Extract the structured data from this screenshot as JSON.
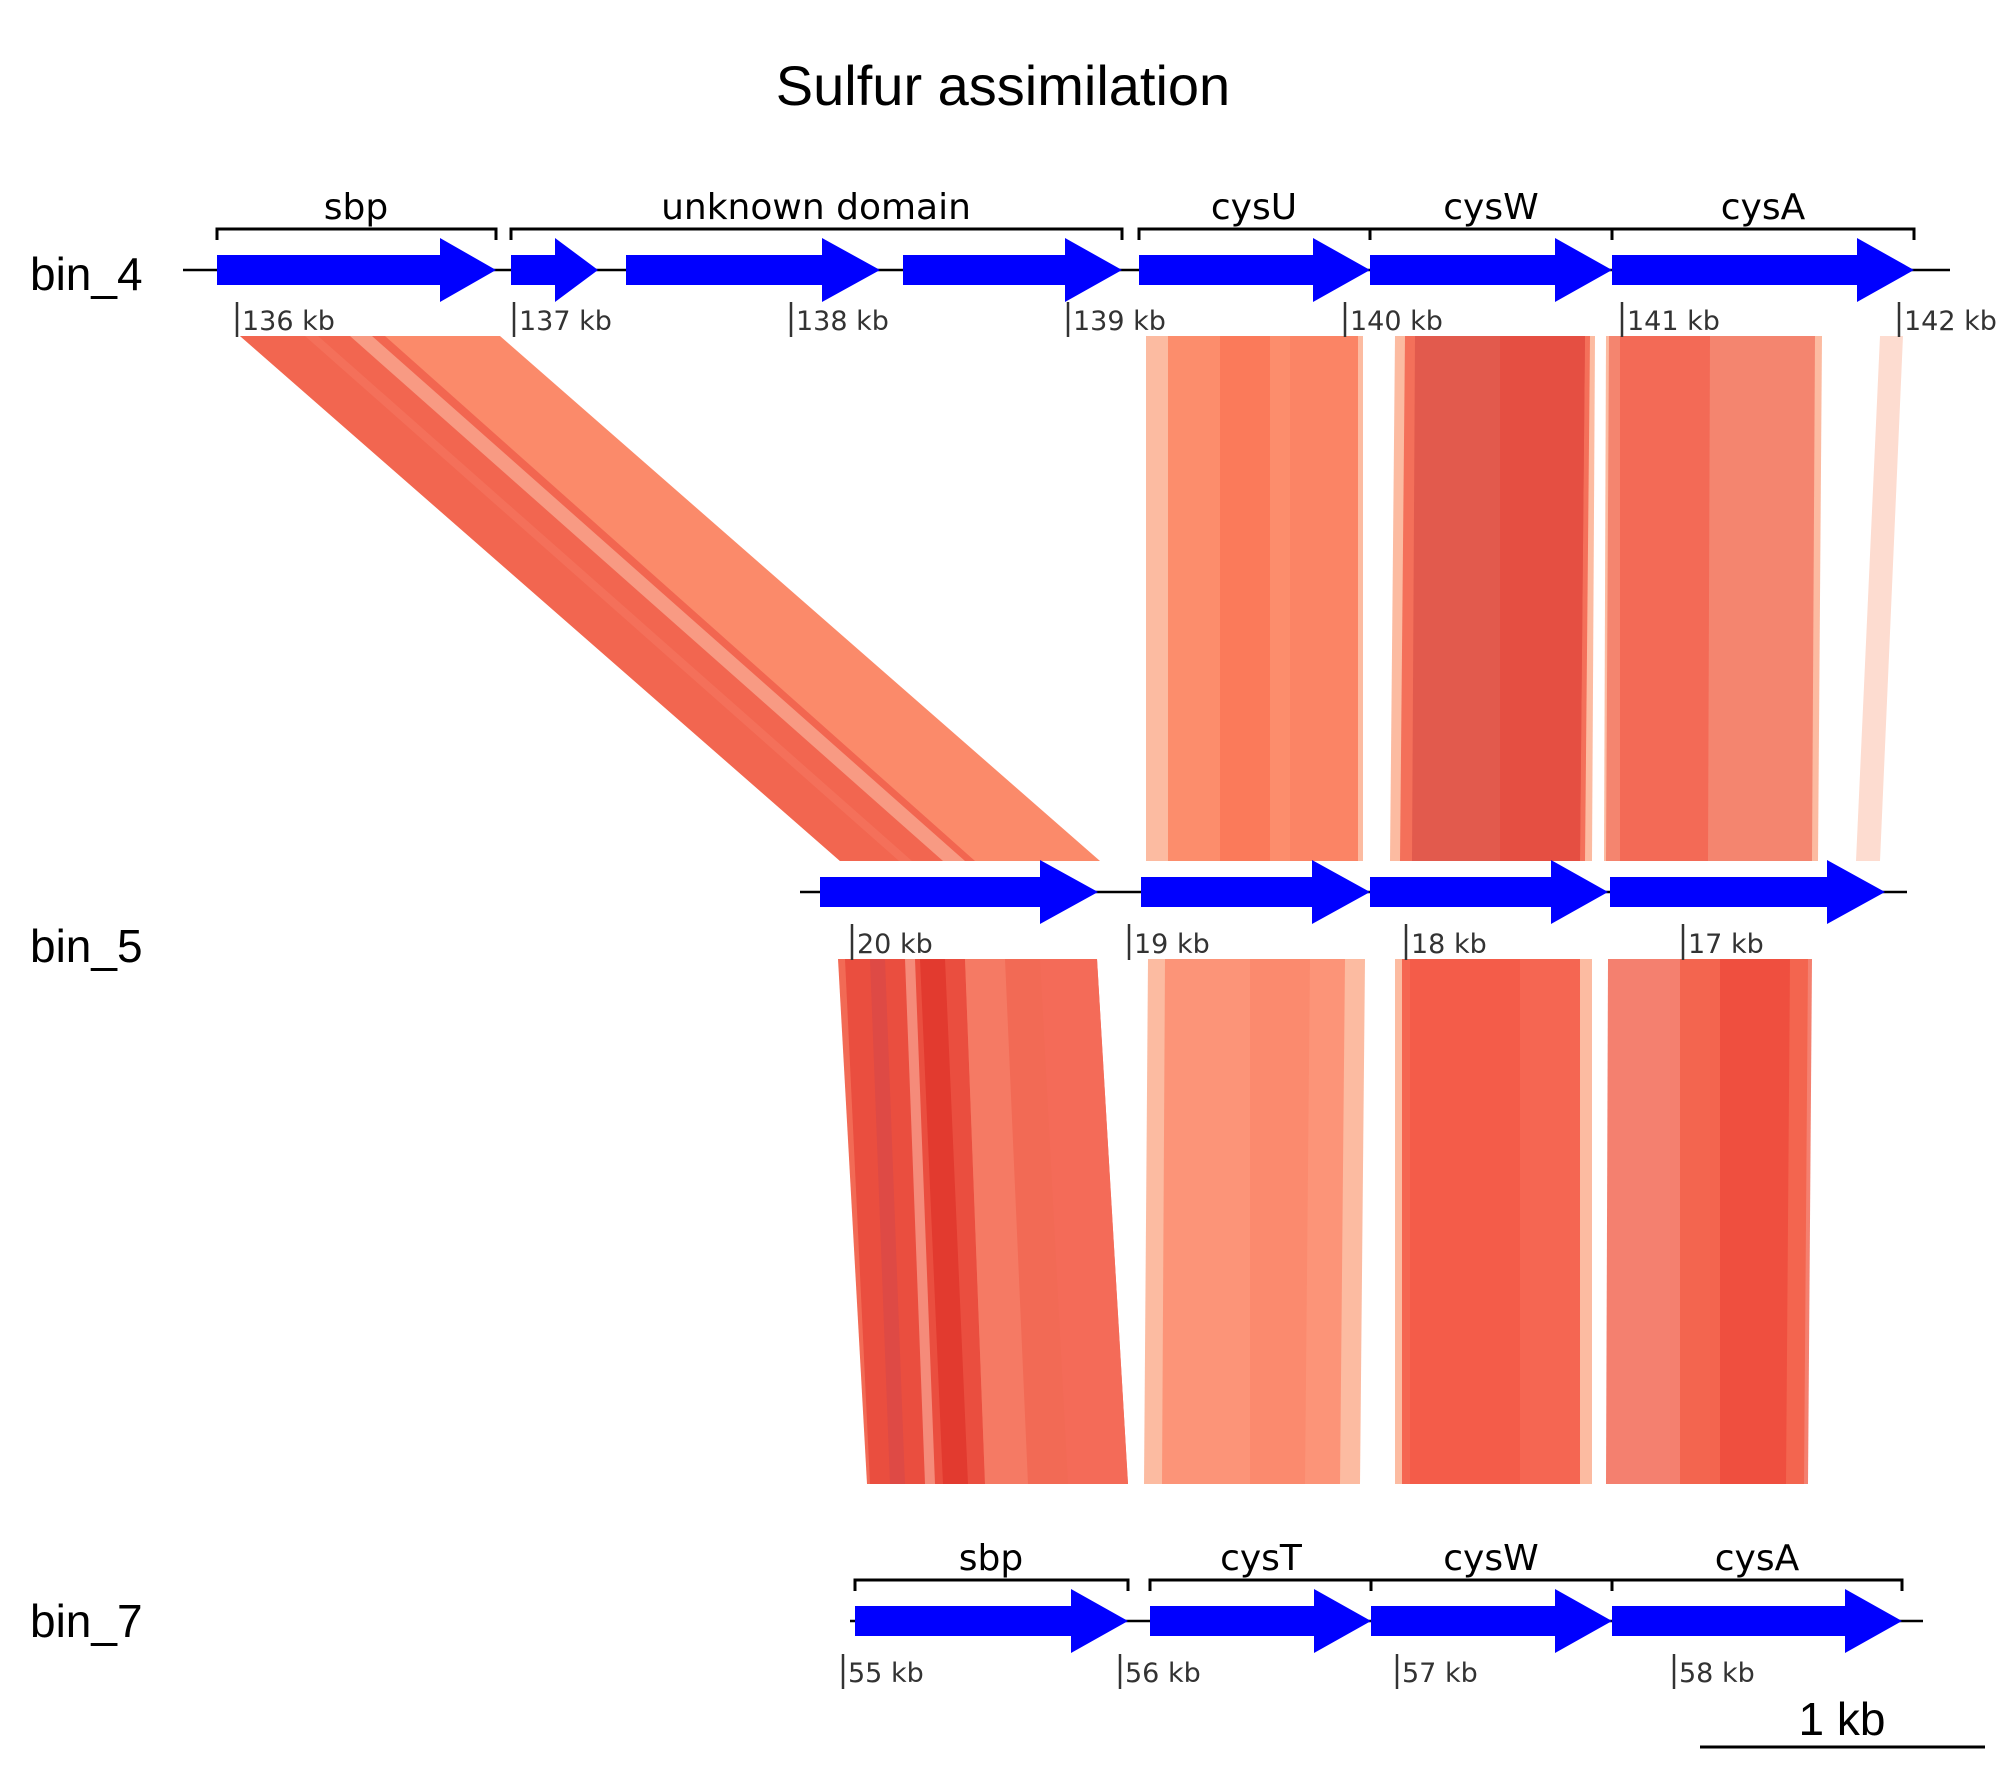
{
  "title": "Sulfur assimilation",
  "scale_bar": {
    "label": "1 kb"
  },
  "colors": {
    "gene": "#0000ff",
    "line": "#000000",
    "tick_text": "#333333"
  },
  "tracks": [
    {
      "label": "bin_4",
      "ticks": [
        "136 kb",
        "137 kb",
        "138 kb",
        "139 kb",
        "140 kb",
        "141 kb",
        "142 kb"
      ],
      "groups": [
        "sbp",
        "unknown domain",
        "cysU",
        "cysW",
        "cysA"
      ]
    },
    {
      "label": "bin_5",
      "ticks": [
        "20 kb",
        "19 kb",
        "18 kb",
        "17 kb"
      ],
      "groups": []
    },
    {
      "label": "bin_7",
      "ticks": [
        "55 kb",
        "56 kb",
        "57 kb",
        "58 kb"
      ],
      "groups": [
        "sbp",
        "cysT",
        "cysW",
        "cysA"
      ]
    }
  ]
}
